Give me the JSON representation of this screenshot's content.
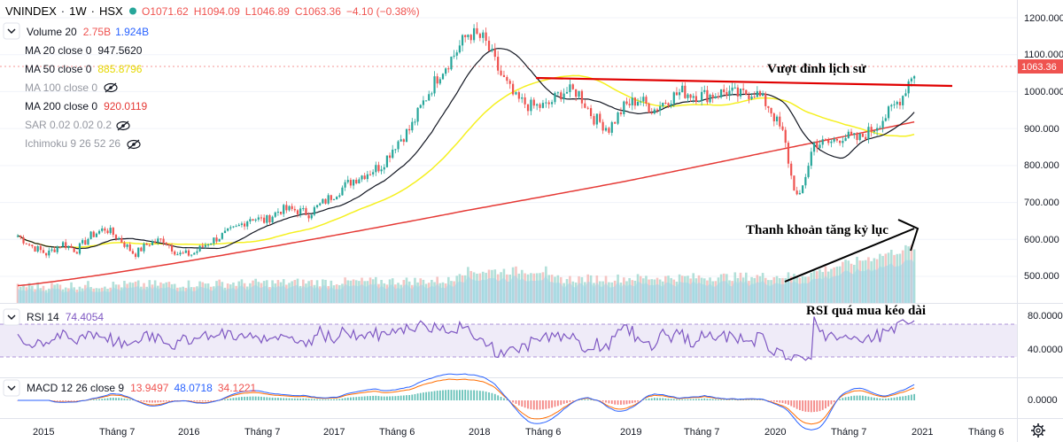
{
  "header": {
    "symbol": "VNINDEX",
    "interval": "1W",
    "exchange": "HSX",
    "open": "O1071.62",
    "high": "H1094.09",
    "low": "L1046.89",
    "close": "C1063.36",
    "change": "−4.10 (−0.38%)"
  },
  "legend": {
    "volume": {
      "label": "Volume 20",
      "v1": "2.75B",
      "v2": "1.924B"
    },
    "ma20": {
      "label": "MA 20 close 0",
      "value": "947.5620"
    },
    "ma50": {
      "label": "MA 50 close 0",
      "value": "885.8796"
    },
    "ma100": {
      "label": "MA 100 close 0"
    },
    "ma200": {
      "label": "MA 200 close 0",
      "value": "920.0119"
    },
    "sar": {
      "label": "SAR 0.02 0.02 0.2"
    },
    "ichimoku": {
      "label": "Ichimoku 9 26 52 26"
    },
    "rsi": {
      "label": "RSI 14",
      "value": "74.4054"
    },
    "macd": {
      "label": "MACD 12 26 close 9",
      "v1": "13.9497",
      "v2": "48.0718",
      "v3": "34.1221"
    }
  },
  "annotations": {
    "breakout": "Vượt đỉnh lịch sử",
    "liquidity": "Thanh khoản tăng kỷ lục",
    "rsi": "RSI quá mua kéo dài"
  },
  "colors": {
    "up": "#26a69a",
    "down": "#ef5350",
    "ma20": "#131722",
    "ma50": "#f5f020",
    "ma200": "#e53935",
    "rsi": "#7e57c2",
    "macd": "#2962ff",
    "signal": "#ff6d00",
    "volume": "#5fb6d6",
    "annotation_line": "#e00000"
  },
  "price_axis": {
    "ticks": [
      "1200.000",
      "1100.000",
      "1000.000",
      "900.000",
      "800.000",
      "700.000",
      "600.000",
      "500.000"
    ],
    "current": "1063.36"
  },
  "rsi_axis": {
    "ticks": [
      "80.0000",
      "40.0000"
    ]
  },
  "macd_axis": {
    "ticks": [
      "0.0000"
    ]
  },
  "time_axis": {
    "labels": [
      "2015",
      "Tháng 7",
      "2016",
      "Tháng 7",
      "2017",
      "Tháng 6",
      "2018",
      "Tháng 6",
      "2019",
      "Tháng 7",
      "2020",
      "Tháng 7",
      "2021",
      "Tháng 6"
    ]
  },
  "chart_data": {
    "type": "candlestick",
    "title": "VNINDEX 1W HSX",
    "y_range": [
      440,
      1230
    ],
    "x_range": [
      "2014-11",
      "2021-08"
    ],
    "series_price": {
      "name": "VNINDEX close (weekly, approximate)",
      "x": [
        2014.9,
        2015.0,
        2015.1,
        2015.2,
        2015.3,
        2015.4,
        2015.5,
        2015.6,
        2015.7,
        2015.8,
        2015.9,
        2016.0,
        2016.1,
        2016.2,
        2016.3,
        2016.4,
        2016.5,
        2016.6,
        2016.7,
        2016.8,
        2016.9,
        2017.0,
        2017.1,
        2017.2,
        2017.3,
        2017.4,
        2017.5,
        2017.6,
        2017.7,
        2017.8,
        2017.9,
        2018.0,
        2018.1,
        2018.2,
        2018.3,
        2018.4,
        2018.5,
        2018.6,
        2018.7,
        2018.8,
        2018.9,
        2019.0,
        2019.1,
        2019.2,
        2019.3,
        2019.4,
        2019.5,
        2019.6,
        2019.7,
        2019.8,
        2019.9,
        2020.0,
        2020.1,
        2020.15,
        2020.2,
        2020.25,
        2020.3,
        2020.4,
        2020.5,
        2020.6,
        2020.7,
        2020.8,
        2020.9,
        2020.95,
        2021.0
      ],
      "values": [
        610,
        580,
        560,
        590,
        570,
        610,
        630,
        600,
        560,
        590,
        600,
        560,
        560,
        590,
        610,
        630,
        660,
        650,
        680,
        680,
        670,
        700,
        730,
        760,
        780,
        800,
        860,
        900,
        980,
        1050,
        1100,
        1160,
        1140,
        1050,
        980,
        960,
        960,
        1000,
        1000,
        930,
        900,
        960,
        980,
        950,
        980,
        1000,
        990,
        990,
        1000,
        990,
        1000,
        960,
        880,
        770,
        700,
        780,
        860,
        860,
        880,
        870,
        900,
        940,
        990,
        1040,
        1063
      ]
    },
    "series": [
      {
        "name": "MA 20",
        "last": 947.562
      },
      {
        "name": "MA 50",
        "last": 885.8796
      },
      {
        "name": "MA 200",
        "last": 920.0119
      },
      {
        "name": "Volume 20",
        "last_volume": "2.75B",
        "ma": "1.924B"
      }
    ],
    "rsi": {
      "period": 14,
      "last": 74.4054,
      "levels": [
        70,
        30
      ],
      "axis_ticks": [
        80,
        40
      ]
    },
    "macd": {
      "fast": 12,
      "slow": 26,
      "signal": 9,
      "histogram": 13.9497,
      "macd": 48.0718,
      "signal_value": 34.1221
    },
    "resistance_level": 1020,
    "annotations": [
      "Vượt đỉnh lịch sử",
      "Thanh khoản tăng kỷ lục",
      "RSI quá mua kéo dài"
    ]
  }
}
